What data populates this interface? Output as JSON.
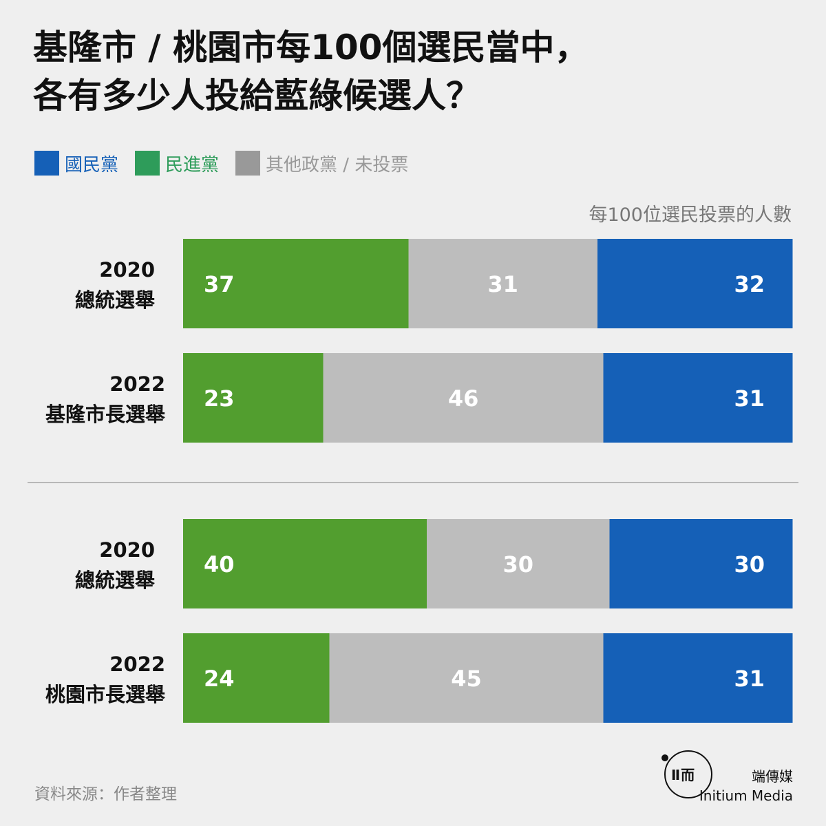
{
  "title_line1": "基隆市 / 桃園市每100個選民當中，",
  "title_line2": "各有多少人投給藍綠候選人？",
  "legend": [
    {
      "label": "國民黨",
      "color": "#1560b7",
      "text_color": "#1560b7"
    },
    {
      "label": "民進黨",
      "color": "#2e9c5a",
      "text_color": "#2e9c5a"
    },
    {
      "label": "其他政黨 / 未投票",
      "color": "#999999",
      "text_color": "#999999"
    }
  ],
  "unit_label": "每100位選民投票的人數",
  "source": "資料來源：作者整理",
  "brand": {
    "cn": "端傳媒",
    "en": "Initium Media",
    "glyph": "Ⅱ而"
  },
  "colors": {
    "green": "#529e2f",
    "gray": "#bdbdbd",
    "blue": "#1560b7"
  },
  "chart_data": {
    "type": "bar",
    "orientation": "horizontal",
    "stacked": true,
    "normalized_total": 100,
    "segment_order": [
      "民進黨",
      "其他政黨 / 未投票",
      "國民黨"
    ],
    "groups": [
      {
        "rows": [
          {
            "label_line1": "2020",
            "label_line2": "總統選舉",
            "values": [
              37,
              31,
              32
            ]
          },
          {
            "label_line1": "2022",
            "label_line2": "基隆市長選舉",
            "values": [
              23,
              46,
              31
            ]
          }
        ]
      },
      {
        "rows": [
          {
            "label_line1": "2020",
            "label_line2": "總統選舉",
            "values": [
              40,
              30,
              30
            ]
          },
          {
            "label_line1": "2022",
            "label_line2": "桃園市長選舉",
            "values": [
              24,
              45,
              31
            ]
          }
        ]
      }
    ]
  }
}
